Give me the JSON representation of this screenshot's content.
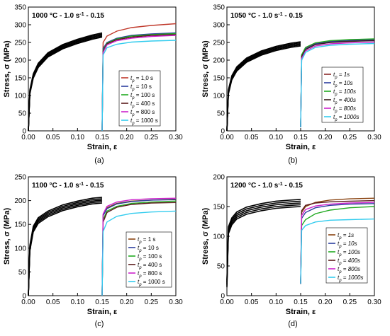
{
  "panel_labels": [
    "(a)",
    "(b)",
    "(c)",
    "(d)"
  ],
  "chart_data": [
    {
      "type": "line",
      "title": "1000 °C - 1.0 s-1 - 0.15",
      "xlabel": "Strain, ε",
      "ylabel": "Stress, σ (MPa)",
      "xlim": [
        0,
        0.3
      ],
      "ylim": [
        0,
        350
      ],
      "xticks": [
        "0.00",
        "0.05",
        "0.10",
        "0.15",
        "0.20",
        "0.25",
        "0.30"
      ],
      "yticks": [
        "0",
        "50",
        "100",
        "150",
        "200",
        "250",
        "300",
        "350"
      ],
      "legend": {
        "position": "right",
        "labels": [
          "tp = 1,0 s",
          "tp = 10 s",
          "tp = 100 s",
          "tp = 400 s",
          "tp = 800 s",
          "tp = 1000 s"
        ]
      },
      "first_pass": {
        "x": [
          0,
          0.003,
          0.01,
          0.02,
          0.04,
          0.07,
          0.1,
          0.13,
          0.15
        ],
        "y": [
          0,
          110,
          155,
          185,
          215,
          238,
          253,
          265,
          271
        ]
      },
      "series": [
        {
          "name": "tp = 1,0 s",
          "color": "#c0392b",
          "x": [
            0.15,
            0.152,
            0.16,
            0.18,
            0.21,
            0.25,
            0.3
          ],
          "y": [
            0,
            250,
            268,
            282,
            292,
            298,
            303
          ]
        },
        {
          "name": "tp = 10 s",
          "color": "#2c3e9e",
          "x": [
            0.15,
            0.152,
            0.16,
            0.18,
            0.21,
            0.25,
            0.3
          ],
          "y": [
            0,
            233,
            250,
            262,
            270,
            274,
            277
          ]
        },
        {
          "name": "tp = 100 s",
          "color": "#22aa22",
          "x": [
            0.15,
            0.152,
            0.16,
            0.18,
            0.21,
            0.25,
            0.3
          ],
          "y": [
            0,
            228,
            248,
            260,
            268,
            272,
            275
          ]
        },
        {
          "name": "tp = 400 s",
          "color": "#5a1a1a",
          "x": [
            0.15,
            0.152,
            0.16,
            0.18,
            0.21,
            0.25,
            0.3
          ],
          "y": [
            0,
            225,
            246,
            258,
            265,
            270,
            272
          ]
        },
        {
          "name": "tp = 800 s",
          "color": "#cc22cc",
          "x": [
            0.15,
            0.152,
            0.16,
            0.18,
            0.21,
            0.25,
            0.3
          ],
          "y": [
            0,
            222,
            243,
            255,
            262,
            267,
            270
          ]
        },
        {
          "name": "tp = 1000 s",
          "color": "#33ccee",
          "x": [
            0.15,
            0.152,
            0.16,
            0.18,
            0.21,
            0.25,
            0.3
          ],
          "y": [
            0,
            215,
            235,
            245,
            251,
            254,
            256
          ]
        }
      ]
    },
    {
      "type": "line",
      "title": "1050 °C - 1.0 s-1 - 0.15",
      "xlabel": "Strain, ε",
      "ylabel": "Stress, σ (MPa)",
      "xlim": [
        0,
        0.3
      ],
      "ylim": [
        0,
        350
      ],
      "xticks": [
        "0.00",
        "0.05",
        "0.10",
        "0.15",
        "0.20",
        "0.25",
        "0.30"
      ],
      "yticks": [
        "0",
        "50",
        "100",
        "150",
        "200",
        "250",
        "300",
        "350"
      ],
      "legend": {
        "position": "right",
        "labels": [
          "tp = 1s",
          "tp = 10s",
          "tp = 100s",
          "tp = 400s",
          "tp = 800s",
          "tp = 1000s"
        ]
      },
      "first_pass": {
        "x": [
          0,
          0.003,
          0.01,
          0.02,
          0.04,
          0.07,
          0.1,
          0.13,
          0.15
        ],
        "y": [
          0,
          110,
          150,
          175,
          200,
          220,
          233,
          242,
          246
        ]
      },
      "series": [
        {
          "name": "tp = 1s",
          "color": "#8b2a2a",
          "x": [
            0.15,
            0.152,
            0.16,
            0.18,
            0.21,
            0.25,
            0.3
          ],
          "y": [
            10,
            215,
            235,
            248,
            254,
            257,
            259
          ]
        },
        {
          "name": "tp = 10s",
          "color": "#2c3e9e",
          "x": [
            0.15,
            0.152,
            0.16,
            0.18,
            0.21,
            0.25,
            0.3
          ],
          "y": [
            10,
            212,
            232,
            246,
            252,
            255,
            257
          ]
        },
        {
          "name": "tp = 100s",
          "color": "#22aa22",
          "x": [
            0.15,
            0.152,
            0.16,
            0.18,
            0.21,
            0.25,
            0.3
          ],
          "y": [
            10,
            215,
            236,
            249,
            255,
            258,
            260
          ]
        },
        {
          "name": "tp = 400s",
          "color": "#3a1a1a",
          "x": [
            0.15,
            0.152,
            0.16,
            0.18,
            0.21,
            0.25,
            0.3
          ],
          "y": [
            10,
            210,
            230,
            244,
            250,
            253,
            255
          ]
        },
        {
          "name": "tp = 800s",
          "color": "#cc22cc",
          "x": [
            0.15,
            0.152,
            0.16,
            0.18,
            0.21,
            0.25,
            0.3
          ],
          "y": [
            10,
            205,
            226,
            240,
            246,
            249,
            251
          ]
        },
        {
          "name": "tp = 1000s",
          "color": "#33ccee",
          "x": [
            0.15,
            0.152,
            0.16,
            0.18,
            0.21,
            0.25,
            0.3
          ],
          "y": [
            10,
            200,
            222,
            236,
            242,
            245,
            247
          ]
        }
      ]
    },
    {
      "type": "line",
      "title": "1100 °C - 1.0 s-1 - 0.15",
      "xlabel": "Strain, ε",
      "ylabel": "Stress, σ (MPa)",
      "xlim": [
        0,
        0.3
      ],
      "ylim": [
        0,
        250
      ],
      "xticks": [
        "0.00",
        "0.05",
        "0.10",
        "0.15",
        "0.20",
        "0.25",
        "0.30"
      ],
      "yticks": [
        "0",
        "50",
        "100",
        "150",
        "200",
        "250"
      ],
      "legend": {
        "position": "right",
        "labels": [
          "tp = 1 s",
          "tp = 10 s",
          "tp = 100 s",
          "tp = 400 s",
          "tp = 800 s",
          "tp = 1000 s"
        ]
      },
      "first_pass": {
        "x": [
          0,
          0.003,
          0.01,
          0.02,
          0.04,
          0.07,
          0.1,
          0.13,
          0.15
        ],
        "y": [
          0,
          100,
          140,
          158,
          172,
          185,
          193,
          199,
          201
        ]
      },
      "series": [
        {
          "name": "tp = 1 s",
          "color": "#8b4513",
          "x": [
            0.15,
            0.152,
            0.16,
            0.18,
            0.21,
            0.25,
            0.3
          ],
          "y": [
            0,
            170,
            185,
            194,
            199,
            201,
            203
          ]
        },
        {
          "name": "tp = 10 s",
          "color": "#2c3e9e",
          "x": [
            0.15,
            0.152,
            0.16,
            0.18,
            0.21,
            0.25,
            0.3
          ],
          "y": [
            0,
            168,
            183,
            193,
            198,
            201,
            202
          ]
        },
        {
          "name": "tp = 100 s",
          "color": "#22aa22",
          "x": [
            0.15,
            0.152,
            0.16,
            0.18,
            0.21,
            0.25,
            0.3
          ],
          "y": [
            0,
            160,
            178,
            188,
            194,
            197,
            199
          ]
        },
        {
          "name": "tp = 400 s",
          "color": "#5a1a1a",
          "x": [
            0.15,
            0.152,
            0.16,
            0.18,
            0.21,
            0.25,
            0.3
          ],
          "y": [
            0,
            155,
            175,
            186,
            192,
            195,
            196
          ]
        },
        {
          "name": "tp = 800 s",
          "color": "#cc22cc",
          "x": [
            0.15,
            0.152,
            0.16,
            0.18,
            0.21,
            0.25,
            0.3
          ],
          "y": [
            0,
            172,
            188,
            197,
            202,
            204,
            205
          ]
        },
        {
          "name": "tp = 1000 s",
          "color": "#33ccee",
          "x": [
            0.15,
            0.152,
            0.16,
            0.18,
            0.21,
            0.25,
            0.3
          ],
          "y": [
            0,
            135,
            155,
            167,
            173,
            176,
            178
          ]
        }
      ]
    },
    {
      "type": "line",
      "title": "1200 °C - 1.0 s-1 - 0.15",
      "xlabel": "Strain, ε",
      "ylabel": "Stress, σ (MPa)",
      "xlim": [
        0,
        0.3
      ],
      "ylim": [
        0,
        200
      ],
      "xticks": [
        "0.00",
        "0.05",
        "0.10",
        "0.15",
        "0.20",
        "0.25",
        "0.30"
      ],
      "yticks": [
        "0",
        "50",
        "100",
        "150",
        "200"
      ],
      "legend": {
        "position": "right",
        "labels": [
          "tp = 1s",
          "tp = 10s",
          "tp = 100s",
          "tp = 400s",
          "tp = 800s",
          "tp = 1000s"
        ]
      },
      "first_pass": {
        "x": [
          0,
          0.003,
          0.01,
          0.02,
          0.04,
          0.07,
          0.1,
          0.13,
          0.15
        ],
        "y": [
          20,
          110,
          125,
          135,
          143,
          149,
          153,
          155,
          156
        ]
      },
      "series": [
        {
          "name": "tp = 1s",
          "color": "#8b4513",
          "x": [
            0.15,
            0.152,
            0.16,
            0.18,
            0.21,
            0.25,
            0.3
          ],
          "y": [
            20,
            140,
            150,
            157,
            161,
            163,
            164
          ]
        },
        {
          "name": "tp = 10s",
          "color": "#2c3e9e",
          "x": [
            0.15,
            0.152,
            0.16,
            0.18,
            0.21,
            0.25,
            0.3
          ],
          "y": [
            20,
            130,
            140,
            148,
            152,
            154,
            155
          ]
        },
        {
          "name": "tp = 100s",
          "color": "#22aa22",
          "x": [
            0.15,
            0.152,
            0.16,
            0.18,
            0.21,
            0.25,
            0.3
          ],
          "y": [
            20,
            118,
            128,
            138,
            144,
            148,
            150
          ]
        },
        {
          "name": "tp = 400s",
          "color": "#5a1a1a",
          "x": [
            0.15,
            0.152,
            0.16,
            0.18,
            0.21,
            0.25,
            0.3
          ],
          "y": [
            20,
            143,
            152,
            156,
            158,
            159,
            160
          ]
        },
        {
          "name": "tp = 800s",
          "color": "#cc22cc",
          "x": [
            0.15,
            0.152,
            0.16,
            0.18,
            0.21,
            0.25,
            0.3
          ],
          "y": [
            20,
            135,
            145,
            151,
            154,
            156,
            157
          ]
        },
        {
          "name": "tp = 1000s",
          "color": "#33ccee",
          "x": [
            0.15,
            0.152,
            0.16,
            0.18,
            0.21,
            0.25,
            0.3
          ],
          "y": [
            20,
            110,
            118,
            124,
            127,
            128,
            129
          ]
        }
      ]
    }
  ]
}
